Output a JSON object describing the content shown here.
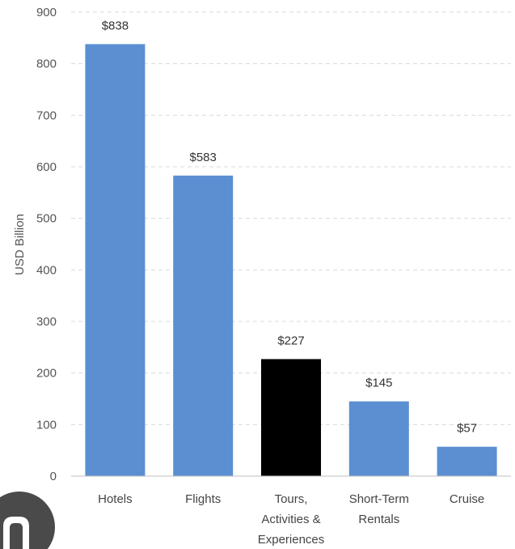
{
  "chart_data": {
    "type": "bar",
    "title": "",
    "xlabel": "",
    "ylabel": "USD Billion",
    "ylim": [
      0,
      900
    ],
    "yticks": [
      0,
      100,
      200,
      300,
      400,
      500,
      600,
      700,
      800,
      900
    ],
    "grid": true,
    "categories": [
      [
        "Hotels"
      ],
      [
        "Flights"
      ],
      [
        "Tours,",
        "Activities &",
        "Experiences"
      ],
      [
        "Short-Term",
        "Rentals"
      ],
      [
        "Cruise"
      ]
    ],
    "values": [
      838,
      583,
      227,
      145,
      57
    ],
    "data_labels": [
      "$838",
      "$583",
      "$227",
      "$145",
      "$57"
    ],
    "colors": [
      "#5b8fd1",
      "#5b8fd1",
      "#000000",
      "#5b8fd1",
      "#5b8fd1"
    ]
  },
  "logo": {
    "color": "#4a4a4a",
    "icon": "partial-logo-icon"
  }
}
